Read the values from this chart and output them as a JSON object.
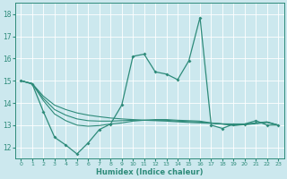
{
  "xlabel": "Humidex (Indice chaleur)",
  "bg_color": "#cce8ee",
  "grid_color": "#ffffff",
  "line_color": "#2e8b7a",
  "xlim": [
    -0.5,
    23.5
  ],
  "ylim": [
    11.5,
    18.5
  ],
  "yticks": [
    12,
    13,
    14,
    15,
    16,
    17,
    18
  ],
  "xticks": [
    0,
    1,
    2,
    3,
    4,
    5,
    6,
    7,
    8,
    9,
    10,
    11,
    12,
    13,
    14,
    15,
    16,
    17,
    18,
    19,
    20,
    21,
    22,
    23
  ],
  "series_main": [
    15.0,
    14.85,
    13.6,
    12.45,
    12.1,
    11.7,
    12.2,
    12.8,
    13.05,
    13.9,
    16.1,
    16.2,
    15.4,
    15.3,
    15.05,
    15.9,
    17.85,
    13.0,
    12.85,
    13.05,
    13.05,
    13.2,
    13.0,
    13.0
  ],
  "series_smooth1": [
    15.0,
    14.87,
    14.3,
    13.9,
    13.7,
    13.55,
    13.45,
    13.38,
    13.32,
    13.28,
    13.25,
    13.22,
    13.2,
    13.18,
    13.15,
    13.12,
    13.1,
    13.08,
    13.06,
    13.05,
    13.05,
    13.1,
    13.15,
    13.0
  ],
  "series_smooth2": [
    15.0,
    14.87,
    14.1,
    13.5,
    13.2,
    13.0,
    12.95,
    12.98,
    13.05,
    13.1,
    13.18,
    13.22,
    13.25,
    13.25,
    13.22,
    13.2,
    13.18,
    13.1,
    13.05,
    12.98,
    13.02,
    13.07,
    13.12,
    13.0
  ],
  "series_smooth3": [
    15.0,
    14.87,
    14.2,
    13.7,
    13.45,
    13.28,
    13.2,
    13.18,
    13.18,
    13.2,
    13.22,
    13.22,
    13.22,
    13.22,
    13.18,
    13.16,
    13.14,
    13.09,
    13.05,
    13.0,
    13.03,
    13.08,
    13.13,
    13.0
  ]
}
